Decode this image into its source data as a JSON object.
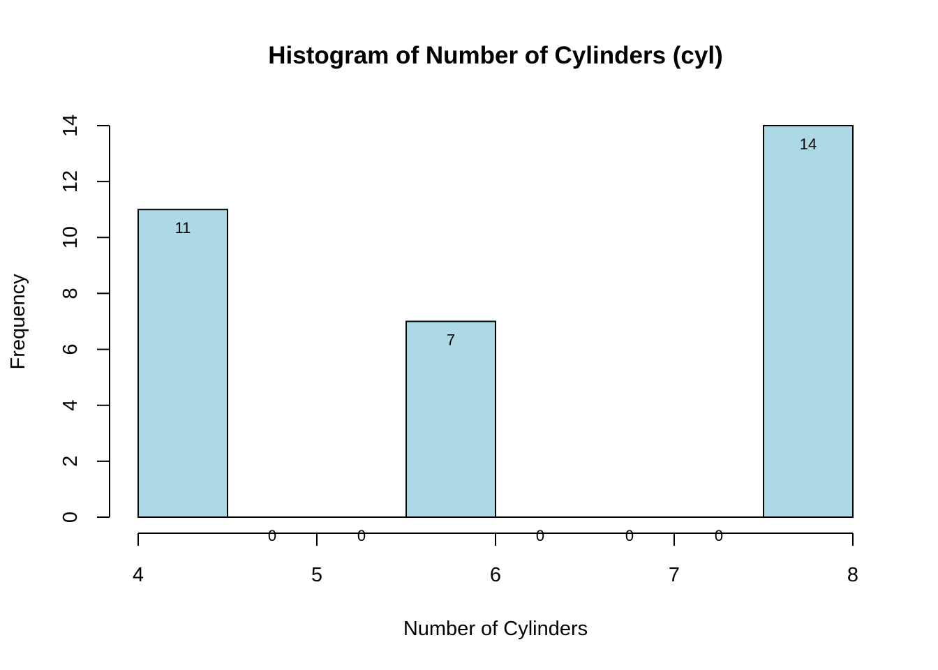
{
  "chart_data": {
    "type": "bar",
    "title": "Histogram of Number of Cylinders (cyl)",
    "xlabel": "Number of Cylinders",
    "ylabel": "Frequency",
    "bins": [
      {
        "start": 4.0,
        "end": 4.5,
        "count": 11
      },
      {
        "start": 4.5,
        "end": 5.0,
        "count": 0
      },
      {
        "start": 5.0,
        "end": 5.5,
        "count": 0
      },
      {
        "start": 5.5,
        "end": 6.0,
        "count": 7
      },
      {
        "start": 6.0,
        "end": 6.5,
        "count": 0
      },
      {
        "start": 6.5,
        "end": 7.0,
        "count": 0
      },
      {
        "start": 7.0,
        "end": 7.5,
        "count": 0
      },
      {
        "start": 7.5,
        "end": 8.0,
        "count": 14
      }
    ],
    "xlim": [
      4,
      8
    ],
    "ylim": [
      0,
      14
    ],
    "x_ticks": [
      4,
      5,
      6,
      7,
      8
    ],
    "y_ticks": [
      0,
      2,
      4,
      6,
      8,
      10,
      12,
      14
    ],
    "bar_color": "#add8e6",
    "bar_border_color": "#000000",
    "show_bar_labels": true,
    "grid": false,
    "legend": "none"
  }
}
